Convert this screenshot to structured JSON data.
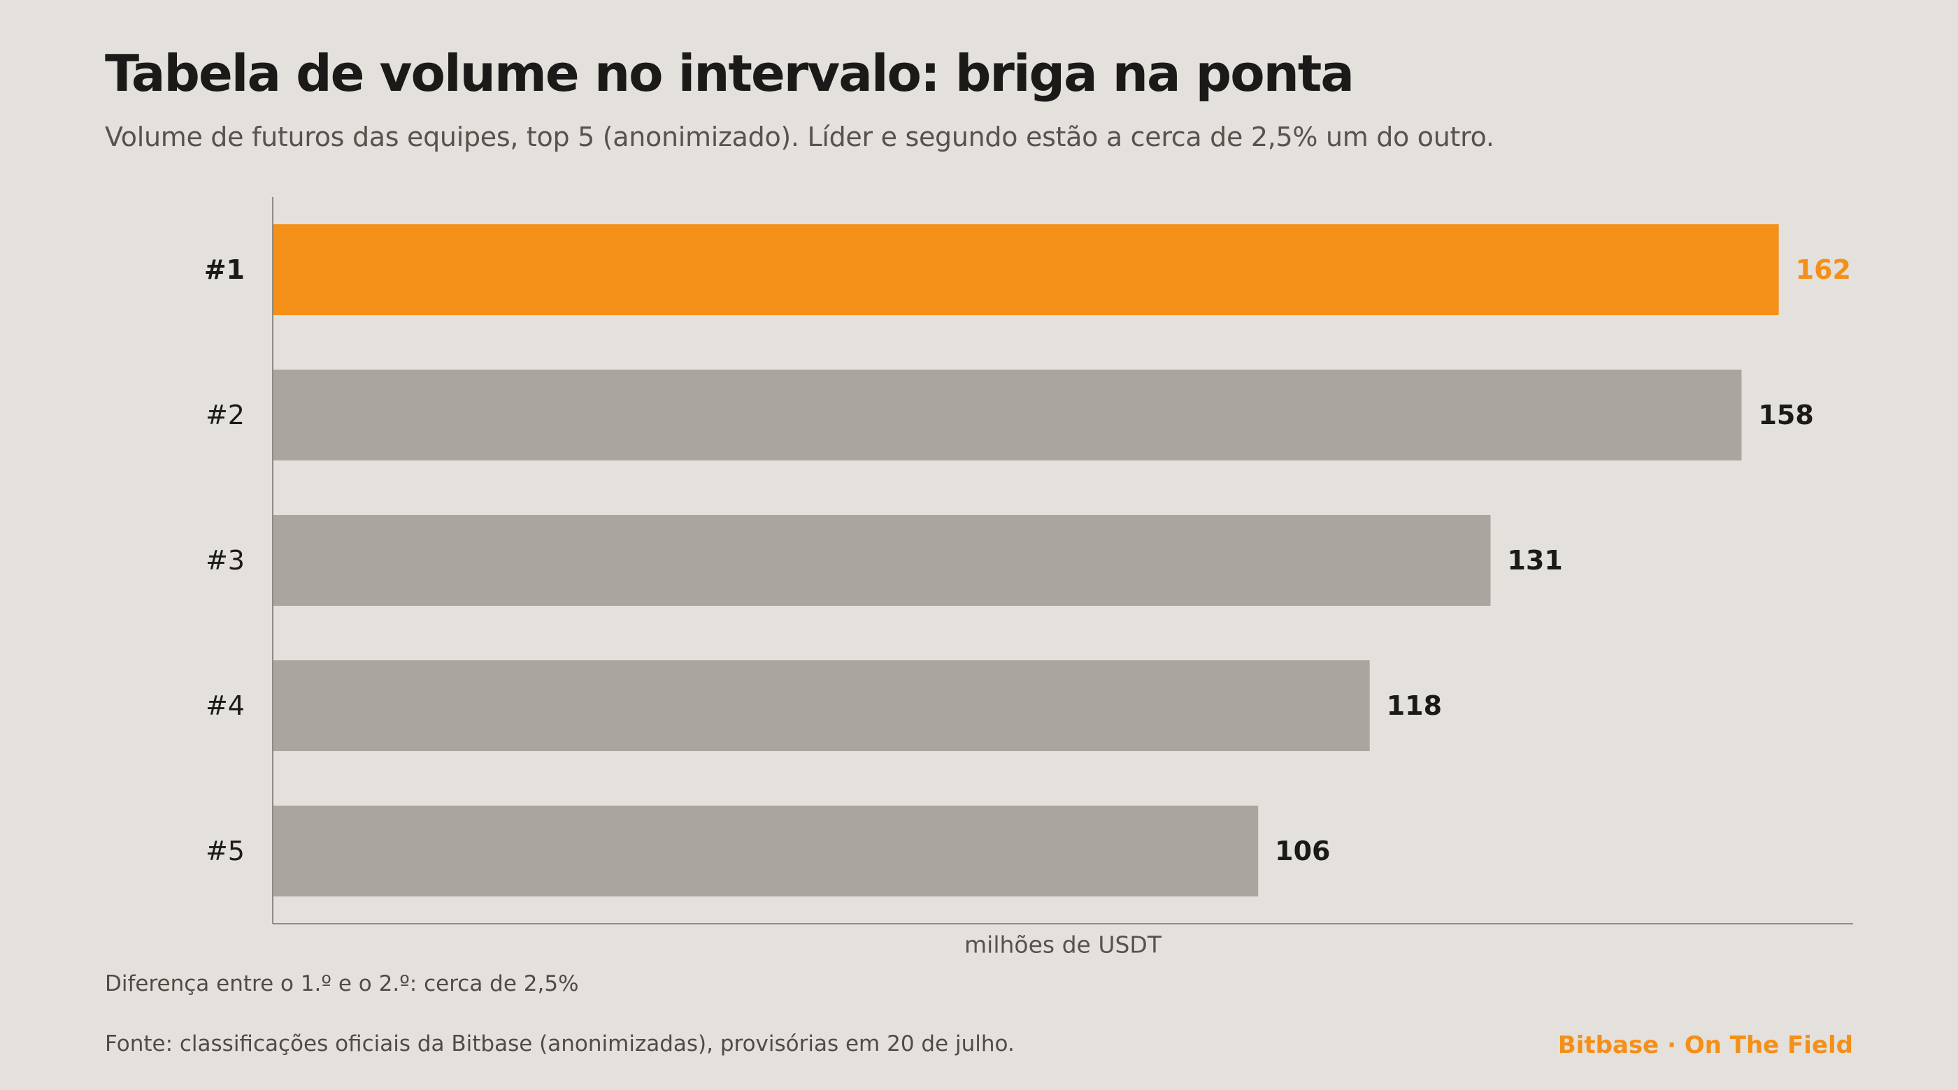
{
  "page": {
    "title": "Tabela de volume no intervalo: briga na ponta",
    "subtitle": "Volume de futuros das equipes, top 5 (anonimizado). Líder e segundo estão a cerca de 2,5% um do outro.",
    "footnote": "Diferença entre o 1.º e o 2.º: cerca de 2,5%",
    "source": "Fonte: classificações oficiais da Bitbase (anonimizadas), provisórias em 20 de julho.",
    "brand": "Bitbase · On The Field"
  },
  "chart_data": {
    "type": "bar",
    "orientation": "horizontal",
    "categories": [
      "#1",
      "#2",
      "#3",
      "#4",
      "#5"
    ],
    "values": [
      162,
      158,
      131,
      118,
      106
    ],
    "xlabel": "milhões de USDT",
    "ylabel": "",
    "xlim": [
      0,
      170
    ],
    "grid": false,
    "highlight_index": 0,
    "colors": {
      "highlight": "#f48f18",
      "default": "#aaa59f",
      "highlight_label": "#f48f18",
      "default_label": "#1b1a18",
      "axis": "#8e8a85",
      "background": "#e4e0db"
    }
  }
}
